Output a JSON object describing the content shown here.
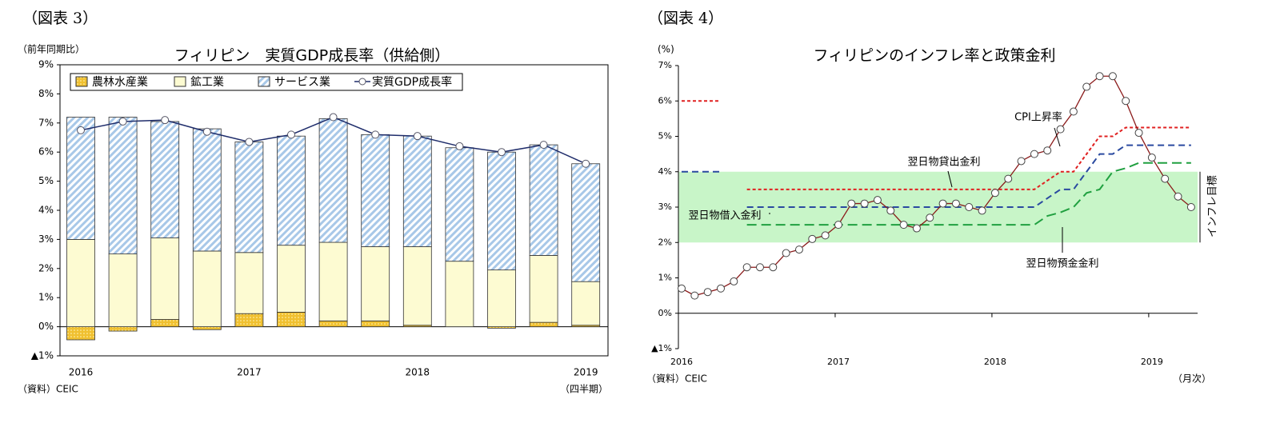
{
  "chart_data": [
    {
      "type": "bar",
      "stacked": true,
      "figure_label": "（図表 3）",
      "title": "フィリピン　実質GDP成長率（供給側）",
      "y_label": "（前年同期比）",
      "x_unit": "（四半期）",
      "source": "（資料）CEIC",
      "categories": [
        "2016",
        null,
        null,
        null,
        "2017",
        null,
        null,
        null,
        "2018",
        null,
        null,
        null,
        "2019"
      ],
      "ylim": [
        -1,
        9
      ],
      "yticks": [
        {
          "value": -1,
          "label": "▲1%"
        },
        {
          "value": 0,
          "label": "0%"
        },
        {
          "value": 1,
          "label": "1%"
        },
        {
          "value": 2,
          "label": "2%"
        },
        {
          "value": 3,
          "label": "3%"
        },
        {
          "value": 4,
          "label": "4%"
        },
        {
          "value": 5,
          "label": "5%"
        },
        {
          "value": 6,
          "label": "6%"
        },
        {
          "value": 7,
          "label": "7%"
        },
        {
          "value": 8,
          "label": "8%"
        },
        {
          "value": 9,
          "label": "9%"
        }
      ],
      "series": [
        {
          "name": "農林水産業",
          "type": "bar",
          "color": "#f0c030",
          "pattern": "dots",
          "values": [
            -0.45,
            -0.15,
            0.25,
            -0.1,
            0.45,
            0.5,
            0.2,
            0.2,
            0.05,
            0,
            -0.05,
            0.15,
            0.05
          ]
        },
        {
          "name": "鉱工業",
          "type": "bar",
          "color": "#fdfbd2",
          "values": [
            3.0,
            2.5,
            2.8,
            2.6,
            2.1,
            2.3,
            2.7,
            2.55,
            2.7,
            2.25,
            1.95,
            2.3,
            1.5
          ]
        },
        {
          "name": "サービス業",
          "type": "bar",
          "color": "#a8c8e8",
          "pattern": "hatch",
          "values": [
            4.2,
            4.7,
            4.0,
            4.2,
            3.8,
            3.75,
            4.25,
            3.85,
            3.8,
            3.9,
            4.05,
            3.8,
            4.05
          ]
        },
        {
          "name": "実質GDP成長率",
          "type": "line",
          "color": "#1f2d6b",
          "marker": true,
          "values": [
            6.75,
            7.05,
            7.1,
            6.7,
            6.35,
            6.6,
            7.2,
            6.6,
            6.55,
            6.2,
            6.0,
            6.25,
            5.6
          ]
        }
      ],
      "legend": "top-left"
    },
    {
      "type": "line",
      "figure_label": "（図表 4）",
      "title": "フィリピンのインフレ率と政策金利",
      "y_label": "(%)",
      "x_unit": "（月次）",
      "source": "（資料）CEIC",
      "categories": [
        "2016",
        null,
        null,
        null,
        null,
        null,
        null,
        null,
        null,
        null,
        null,
        null,
        "2017",
        null,
        null,
        null,
        null,
        null,
        null,
        null,
        null,
        null,
        null,
        null,
        "2018",
        null,
        null,
        null,
        null,
        null,
        null,
        null,
        null,
        null,
        null,
        null,
        "2019",
        null,
        null,
        null
      ],
      "ylim": [
        -1,
        7
      ],
      "yticks": [
        {
          "value": -1,
          "label": "▲1%"
        },
        {
          "value": 0,
          "label": "0%"
        },
        {
          "value": 1,
          "label": "1%"
        },
        {
          "value": 2,
          "label": "2%"
        },
        {
          "value": 3,
          "label": "3%"
        },
        {
          "value": 4,
          "label": "4%"
        },
        {
          "value": 5,
          "label": "5%"
        },
        {
          "value": 6,
          "label": "6%"
        },
        {
          "value": 7,
          "label": "7%"
        }
      ],
      "target_band": [
        2,
        4
      ],
      "target_label": "インフレ目標",
      "band_color": "#c8f5c8",
      "series": [
        {
          "name": "CPI上昇率",
          "color": "#8b1a1a",
          "marker": true,
          "values": [
            0.7,
            0.5,
            0.6,
            0.7,
            0.9,
            1.3,
            1.3,
            1.3,
            1.7,
            1.8,
            2.1,
            2.2,
            2.5,
            3.1,
            3.1,
            3.2,
            2.9,
            2.5,
            2.4,
            2.7,
            3.1,
            3.1,
            3.0,
            2.9,
            3.4,
            3.8,
            4.3,
            4.5,
            4.6,
            5.2,
            5.7,
            6.4,
            6.7,
            6.7,
            6.0,
            5.1,
            4.4,
            3.8,
            3.3,
            3.0
          ]
        },
        {
          "name": "翌日物貸出金利",
          "color": "#e02020",
          "dash": "4,3",
          "values": [
            6.0,
            6.0,
            6.0,
            6.0,
            null,
            3.5,
            3.5,
            3.5,
            3.5,
            3.5,
            3.5,
            3.5,
            3.5,
            3.5,
            3.5,
            3.5,
            3.5,
            3.5,
            3.5,
            3.5,
            3.5,
            3.5,
            3.5,
            3.5,
            3.5,
            3.5,
            3.5,
            3.5,
            3.75,
            4.0,
            4.0,
            4.5,
            5.0,
            5.0,
            5.25,
            5.25,
            5.25,
            5.25,
            5.25,
            5.25
          ]
        },
        {
          "name": "翌日物借入金利",
          "color": "#2a4aa0",
          "dash": "8,5",
          "values": [
            4.0,
            4.0,
            4.0,
            4.0,
            null,
            3.0,
            3.0,
            3.0,
            3.0,
            3.0,
            3.0,
            3.0,
            3.0,
            3.0,
            3.0,
            3.0,
            3.0,
            3.0,
            3.0,
            3.0,
            3.0,
            3.0,
            3.0,
            3.0,
            3.0,
            3.0,
            3.0,
            3.0,
            3.25,
            3.5,
            3.5,
            4.0,
            4.5,
            4.5,
            4.75,
            4.75,
            4.75,
            4.75,
            4.75,
            4.75
          ]
        },
        {
          "name": "翌日物預金金利",
          "color": "#20a040",
          "dash": "12,6",
          "values": [
            null,
            null,
            null,
            null,
            null,
            2.5,
            2.5,
            2.5,
            2.5,
            2.5,
            2.5,
            2.5,
            2.5,
            2.5,
            2.5,
            2.5,
            2.5,
            2.5,
            2.5,
            2.5,
            2.5,
            2.5,
            2.5,
            2.5,
            2.5,
            2.5,
            2.5,
            2.5,
            2.75,
            2.85,
            3.0,
            3.4,
            3.5,
            4.0,
            4.1,
            4.25,
            4.25,
            4.25,
            4.25,
            4.25
          ]
        }
      ]
    }
  ]
}
